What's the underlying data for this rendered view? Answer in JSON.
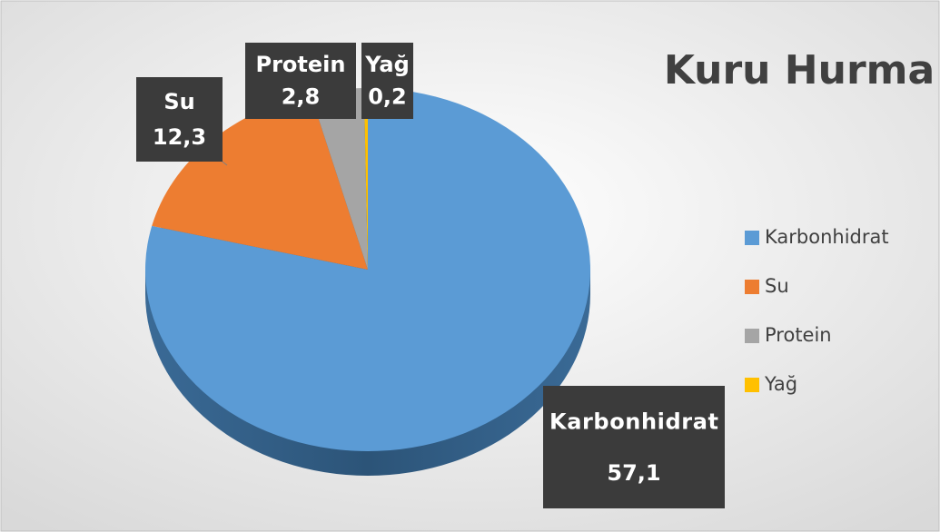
{
  "chart_data": {
    "type": "pie",
    "title": "Kuru Hurma",
    "categories": [
      "Karbonhidrat",
      "Su",
      "Protein",
      "Yağ"
    ],
    "values": [
      57.1,
      12.3,
      2.8,
      0.2
    ],
    "value_labels": [
      "57,1",
      "12,3",
      "2,8",
      "0,2"
    ],
    "colors": [
      "#5b9bd5",
      "#ed7d31",
      "#a5a5a5",
      "#ffc000"
    ],
    "legend": "right"
  }
}
